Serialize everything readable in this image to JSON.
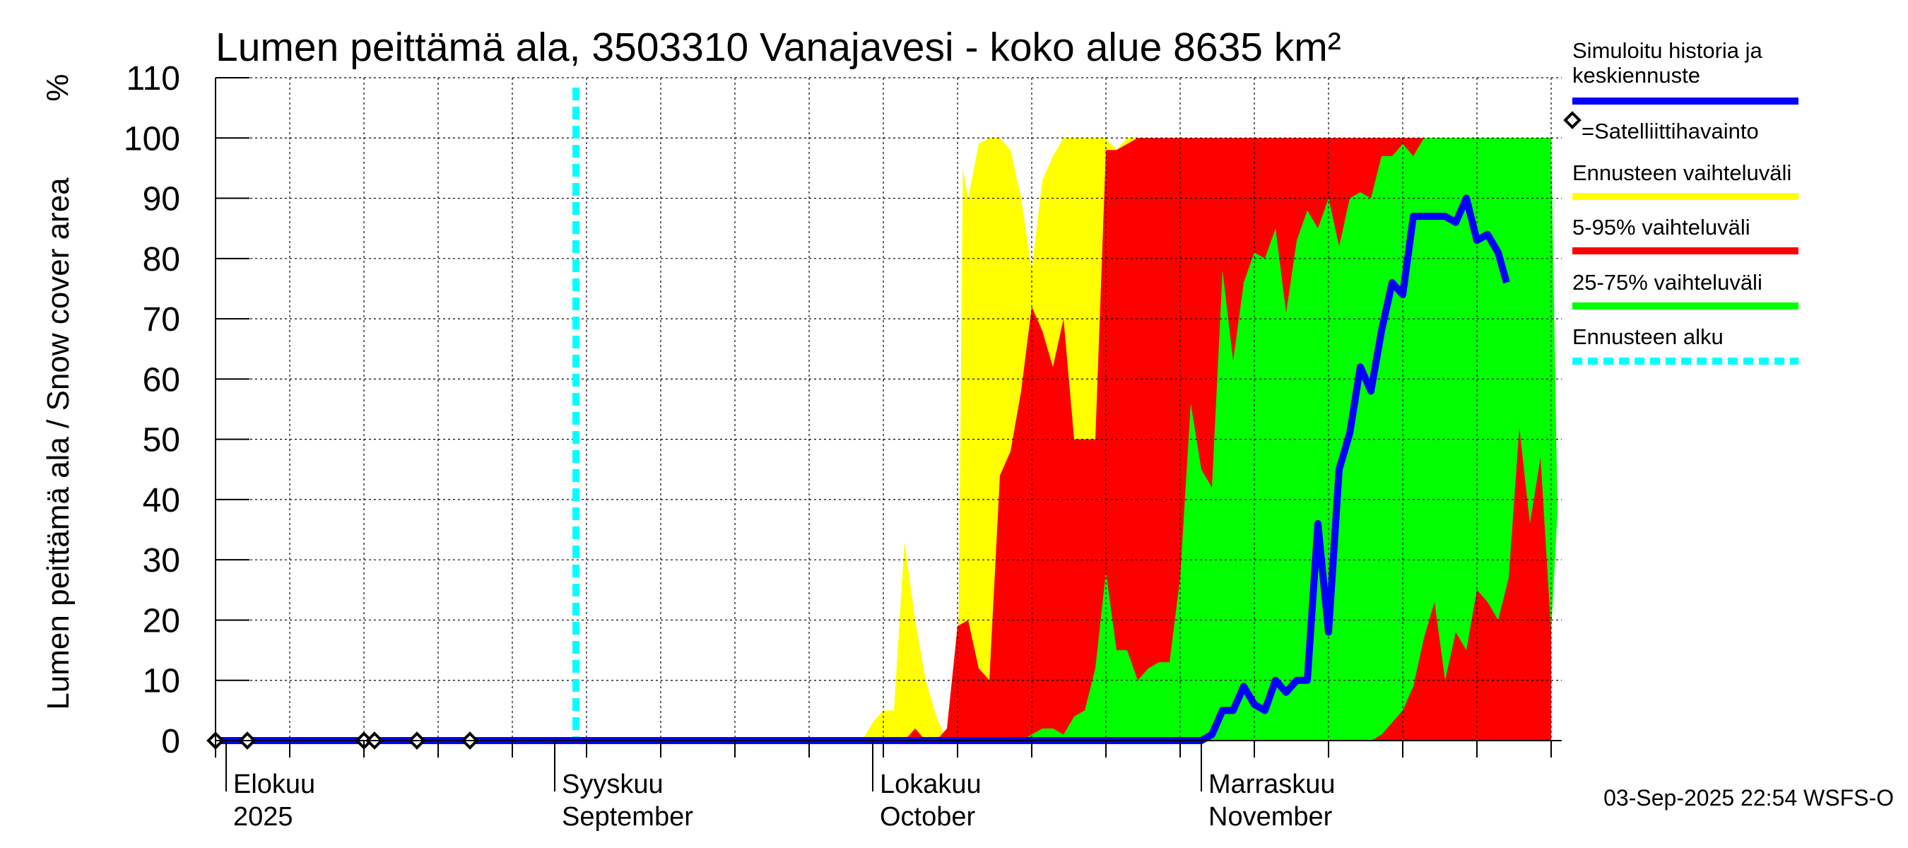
{
  "title": "Lumen peittämä ala, 3503310 Vanajavesi - koko alue 8635 km²",
  "unit_label": "%",
  "timestamp": "03-Sep-2025 22:54 WSFS-O",
  "legend": [
    {
      "label": "Simuloitu historia ja keskiennuste",
      "color": "#0000ff",
      "style": "solid"
    },
    {
      "label": "=Satelliittihavainto",
      "color": "#000000",
      "style": "marker"
    },
    {
      "label": "Ennusteen vaihteluväli",
      "color": "#ffff00",
      "style": "solid"
    },
    {
      "label": "5-95% vaihteluväli",
      "color": "#ff0000",
      "style": "solid"
    },
    {
      "label": "25-75% vaihteluväli",
      "color": "#00ff00",
      "style": "solid"
    },
    {
      "label": "Ennusteen alku",
      "color": "#00ffff",
      "style": "dashed"
    }
  ],
  "chart_data": {
    "type": "area",
    "title": "Lumen peittämä ala, 3503310 Vanajavesi - koko alue 8635 km²",
    "ylabel": "Lumen peittämä ala / Snow cover area",
    "ylim": [
      0,
      110
    ],
    "yticks": [
      0,
      10,
      20,
      30,
      40,
      50,
      60,
      70,
      80,
      90,
      100,
      110
    ],
    "xlim": [
      "2025-07-31",
      "2025-12-06"
    ],
    "x_month_labels": [
      {
        "date": "2025-08-01",
        "line1": "Elokuu",
        "line2": "2025"
      },
      {
        "date": "2025-09-01",
        "line1": "Syyskuu",
        "line2": "September"
      },
      {
        "date": "2025-10-01",
        "line1": "Lokakuu",
        "line2": "October"
      },
      {
        "date": "2025-11-01",
        "line1": "Marraskuu",
        "line2": "November"
      }
    ],
    "forecast_start": "2025-09-03",
    "grid": true,
    "legend_position": "right",
    "series": [
      {
        "name": "Ennusteen vaihteluväli",
        "color": "#ffff00",
        "upper": [
          [
            0,
            0
          ],
          [
            61,
            0
          ],
          [
            62,
            3
          ],
          [
            63,
            5
          ],
          [
            64,
            5
          ],
          [
            65,
            33
          ],
          [
            66,
            20
          ],
          [
            67,
            10
          ],
          [
            68,
            4
          ],
          [
            69,
            0
          ],
          [
            70,
            0
          ],
          [
            70.5,
            95
          ],
          [
            71,
            90
          ],
          [
            72,
            99
          ],
          [
            73,
            100
          ],
          [
            74,
            100
          ],
          [
            75,
            98
          ],
          [
            76,
            90
          ],
          [
            77,
            78
          ],
          [
            78,
            93
          ],
          [
            79,
            97
          ],
          [
            80,
            100
          ],
          [
            84,
            100
          ],
          [
            85,
            98
          ],
          [
            86,
            100
          ],
          [
            89,
            100
          ],
          [
            90,
            95
          ],
          [
            91,
            100
          ],
          [
            126,
            100
          ]
        ],
        "lower": [
          [
            0,
            0
          ],
          [
            126,
            0
          ]
        ]
      },
      {
        "name": "5-95% vaihteluväli",
        "color": "#ff0000",
        "upper": [
          [
            0,
            0
          ],
          [
            65,
            0
          ],
          [
            66,
            2
          ],
          [
            67,
            0
          ],
          [
            68,
            0
          ],
          [
            69,
            2
          ],
          [
            70,
            19
          ],
          [
            71,
            20
          ],
          [
            72,
            12
          ],
          [
            73,
            10
          ],
          [
            74,
            44
          ],
          [
            75,
            48
          ],
          [
            76,
            58
          ],
          [
            77,
            72
          ],
          [
            78,
            68
          ],
          [
            79,
            62
          ],
          [
            80,
            70
          ],
          [
            81,
            50
          ],
          [
            82,
            50
          ],
          [
            83,
            50
          ],
          [
            84,
            98
          ],
          [
            85,
            98
          ],
          [
            86,
            99
          ],
          [
            87,
            100
          ],
          [
            126,
            100
          ]
        ],
        "lower": [
          [
            0,
            0
          ],
          [
            126,
            0
          ]
        ]
      },
      {
        "name": "25-75% vaihteluväli",
        "color": "#00ff00",
        "upper": [
          [
            0,
            0
          ],
          [
            76,
            0
          ],
          [
            77,
            1
          ],
          [
            78,
            2
          ],
          [
            79,
            2
          ],
          [
            80,
            1
          ],
          [
            81,
            4
          ],
          [
            82,
            5
          ],
          [
            83,
            12
          ],
          [
            84,
            28
          ],
          [
            85,
            15
          ],
          [
            86,
            15
          ],
          [
            87,
            10
          ],
          [
            88,
            12
          ],
          [
            89,
            13
          ],
          [
            90,
            13
          ],
          [
            91,
            27
          ],
          [
            92,
            56
          ],
          [
            93,
            45
          ],
          [
            94,
            42
          ],
          [
            95,
            78
          ],
          [
            96,
            63
          ],
          [
            97,
            76
          ],
          [
            98,
            81
          ],
          [
            99,
            80
          ],
          [
            100,
            85
          ],
          [
            101,
            71
          ],
          [
            102,
            83
          ],
          [
            103,
            88
          ],
          [
            104,
            85
          ],
          [
            105,
            90
          ],
          [
            106,
            82
          ],
          [
            107,
            90
          ],
          [
            108,
            91
          ],
          [
            109,
            90
          ],
          [
            110,
            97
          ],
          [
            111,
            97
          ],
          [
            112,
            99
          ],
          [
            113,
            97
          ],
          [
            114,
            100
          ],
          [
            115,
            100
          ],
          [
            116,
            100
          ],
          [
            117,
            100
          ],
          [
            118,
            100
          ],
          [
            126,
            100
          ]
        ],
        "lower": [
          [
            0,
            0
          ],
          [
            109,
            0
          ],
          [
            110,
            1
          ],
          [
            111,
            3
          ],
          [
            112,
            5
          ],
          [
            113,
            9
          ],
          [
            114,
            17
          ],
          [
            115,
            23
          ],
          [
            116,
            10
          ],
          [
            117,
            18
          ],
          [
            118,
            15
          ],
          [
            119,
            25
          ],
          [
            120,
            23
          ],
          [
            121,
            20
          ],
          [
            122,
            27
          ],
          [
            123,
            52
          ],
          [
            124,
            36
          ],
          [
            125,
            47
          ],
          [
            126,
            18
          ],
          [
            126.6,
            38
          ]
        ]
      },
      {
        "name": "Simuloitu historia ja keskiennuste",
        "color": "#0000ff",
        "values": [
          [
            0,
            0
          ],
          [
            93,
            0
          ],
          [
            94,
            1
          ],
          [
            95,
            5
          ],
          [
            96,
            5
          ],
          [
            97,
            9
          ],
          [
            98,
            6
          ],
          [
            99,
            5
          ],
          [
            100,
            10
          ],
          [
            101,
            8
          ],
          [
            102,
            10
          ],
          [
            103,
            10
          ],
          [
            104,
            36
          ],
          [
            105,
            18
          ],
          [
            106,
            45
          ],
          [
            107,
            51
          ],
          [
            108,
            62
          ],
          [
            109,
            58
          ],
          [
            110,
            68
          ],
          [
            111,
            76
          ],
          [
            112,
            74
          ],
          [
            113,
            87
          ],
          [
            114,
            87
          ],
          [
            115,
            87
          ],
          [
            116,
            87
          ],
          [
            117,
            86
          ],
          [
            118,
            90
          ],
          [
            119,
            83
          ],
          [
            120,
            84
          ],
          [
            121,
            81
          ],
          [
            121.8,
            76
          ]
        ]
      }
    ],
    "satellite_observations": [
      [
        0,
        0
      ],
      [
        3,
        0
      ],
      [
        14,
        0
      ],
      [
        15,
        0
      ],
      [
        19,
        0
      ],
      [
        24,
        0
      ]
    ]
  }
}
